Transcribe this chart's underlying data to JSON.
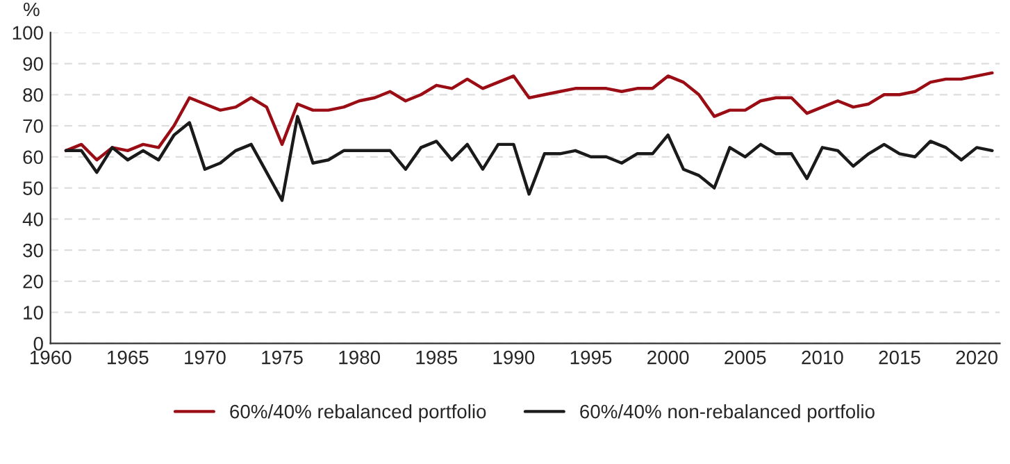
{
  "chart_data": {
    "type": "line",
    "ylabel": "%",
    "x": [
      1961,
      1962,
      1963,
      1964,
      1965,
      1966,
      1967,
      1968,
      1969,
      1970,
      1971,
      1972,
      1973,
      1974,
      1975,
      1976,
      1977,
      1978,
      1979,
      1980,
      1981,
      1982,
      1983,
      1984,
      1985,
      1986,
      1987,
      1988,
      1989,
      1990,
      1991,
      1992,
      1993,
      1994,
      1995,
      1996,
      1997,
      1998,
      1999,
      2000,
      2001,
      2002,
      2003,
      2004,
      2005,
      2006,
      2007,
      2008,
      2009,
      2010,
      2011,
      2012,
      2013,
      2014,
      2015,
      2016,
      2017,
      2018,
      2019,
      2020,
      2021
    ],
    "series": [
      {
        "name": "60%/40% rebalanced portfolio",
        "color": "#9b0d14",
        "values": [
          62,
          64,
          59,
          63,
          62,
          64,
          63,
          70,
          79,
          77,
          75,
          76,
          79,
          76,
          64,
          77,
          75,
          75,
          76,
          78,
          79,
          81,
          78,
          80,
          83,
          82,
          85,
          82,
          84,
          86,
          79,
          80,
          81,
          82,
          82,
          82,
          81,
          82,
          82,
          86,
          84,
          80,
          73,
          75,
          75,
          78,
          79,
          79,
          74,
          76,
          78,
          76,
          77,
          80,
          80,
          81,
          84,
          85,
          85,
          86,
          87
        ]
      },
      {
        "name": "60%/40% non-rebalanced portfolio",
        "color": "#1a1a1a",
        "values": [
          62,
          62,
          55,
          63,
          59,
          62,
          59,
          67,
          71,
          56,
          58,
          62,
          64,
          55,
          46,
          73,
          58,
          59,
          62,
          62,
          62,
          62,
          56,
          63,
          65,
          59,
          64,
          56,
          64,
          64,
          48,
          61,
          61,
          62,
          60,
          60,
          58,
          61,
          61,
          67,
          56,
          54,
          50,
          63,
          60,
          64,
          61,
          61,
          53,
          63,
          62,
          57,
          61,
          64,
          61,
          60,
          65,
          63,
          59,
          63,
          62
        ]
      }
    ],
    "xlim": [
      1960,
      2021.5
    ],
    "xticks": [
      1960,
      1965,
      1970,
      1975,
      1980,
      1985,
      1990,
      1995,
      2000,
      2005,
      2010,
      2015,
      2020
    ],
    "ylim": [
      0,
      100
    ],
    "yticks": [
      0,
      10,
      20,
      30,
      40,
      50,
      60,
      70,
      80,
      90,
      100
    ],
    "grid": "y",
    "legend": "bottom",
    "line_style": "solid",
    "marker": "none"
  }
}
